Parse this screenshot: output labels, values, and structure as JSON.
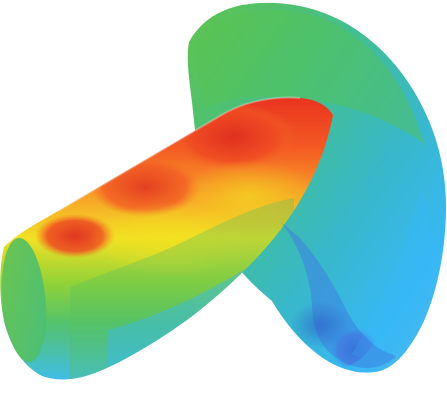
{
  "scene": {
    "subject": "contour-plot",
    "background": "#ffffff",
    "colormap": [
      "#2f62c9",
      "#38b7ff",
      "#44c7a8",
      "#65c34b",
      "#f4e623",
      "#f7a22c",
      "#e83521"
    ]
  }
}
